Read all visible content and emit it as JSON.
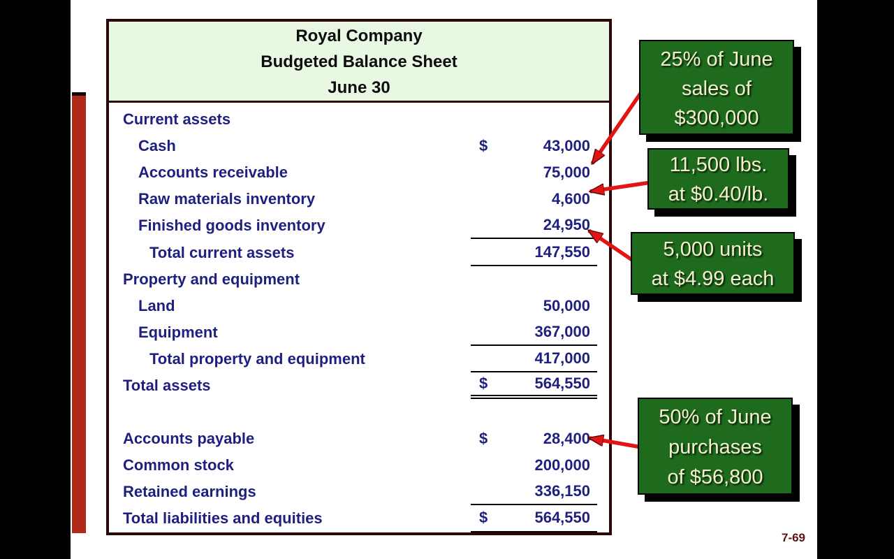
{
  "page": {
    "page_number": "7-69"
  },
  "table": {
    "title_lines": [
      "Royal Company",
      "Budgeted Balance Sheet",
      "June 30"
    ],
    "rows": [
      {
        "label": "Current assets",
        "indent": 0,
        "dollar": "",
        "value": "",
        "underline": "none"
      },
      {
        "label": "Cash",
        "indent": 1,
        "dollar": "$",
        "value": "43,000",
        "underline": "none"
      },
      {
        "label": "Accounts receivable",
        "indent": 1,
        "dollar": "",
        "value": "75,000",
        "underline": "none"
      },
      {
        "label": "Raw materials inventory",
        "indent": 1,
        "dollar": "",
        "value": "4,600",
        "underline": "none"
      },
      {
        "label": "Finished goods inventory",
        "indent": 1,
        "dollar": "",
        "value": "24,950",
        "underline": "single"
      },
      {
        "label": "Total current assets",
        "indent": 2,
        "dollar": "",
        "value": "147,550",
        "underline": "single"
      },
      {
        "label": "Property and equipment",
        "indent": 0,
        "dollar": "",
        "value": "",
        "underline": "none"
      },
      {
        "label": "Land",
        "indent": 1,
        "dollar": "",
        "value": "50,000",
        "underline": "none"
      },
      {
        "label": "Equipment",
        "indent": 1,
        "dollar": "",
        "value": "367,000",
        "underline": "single"
      },
      {
        "label": "Total property and equipment",
        "indent": 2,
        "dollar": "",
        "value": "417,000",
        "underline": "single"
      },
      {
        "label": "Total assets",
        "indent": 0,
        "dollar": "$",
        "value": "564,550",
        "underline": "double"
      },
      {
        "label": "",
        "indent": 0,
        "dollar": "",
        "value": "",
        "underline": "none"
      },
      {
        "label": "Accounts payable",
        "indent": 0,
        "dollar": "$",
        "value": "28,400",
        "underline": "none"
      },
      {
        "label": "Common stock",
        "indent": 0,
        "dollar": "",
        "value": "200,000",
        "underline": "none"
      },
      {
        "label": "Retained earnings",
        "indent": 0,
        "dollar": "",
        "value": "336,150",
        "underline": "single"
      },
      {
        "label": "Total liabilities and equities",
        "indent": 0,
        "dollar": "$",
        "value": "564,550",
        "underline": "single"
      }
    ]
  },
  "callouts": [
    {
      "target": "Accounts receivable",
      "lines": [
        "25% of June",
        "sales of",
        "$300,000"
      ]
    },
    {
      "target": "Raw materials inventory",
      "lines": [
        "11,500 lbs.",
        "at $0.40/lb."
      ]
    },
    {
      "target": "Finished goods inventory",
      "lines": [
        "5,000 units",
        "at $4.99 each"
      ]
    },
    {
      "target": "Accounts payable",
      "lines": [
        "50% of June",
        "purchases",
        "of $56,800"
      ]
    }
  ],
  "colors": {
    "header_bg": "#e9f8e3",
    "table_border": "#2d0808",
    "body_text": "#1f1f80",
    "callout_bg": "#1e6b1e",
    "callout_text": "#f3f0cc",
    "arrow_red": "#e31414",
    "accent_bar_red": "#b02818",
    "page_number": "#5a1414"
  }
}
